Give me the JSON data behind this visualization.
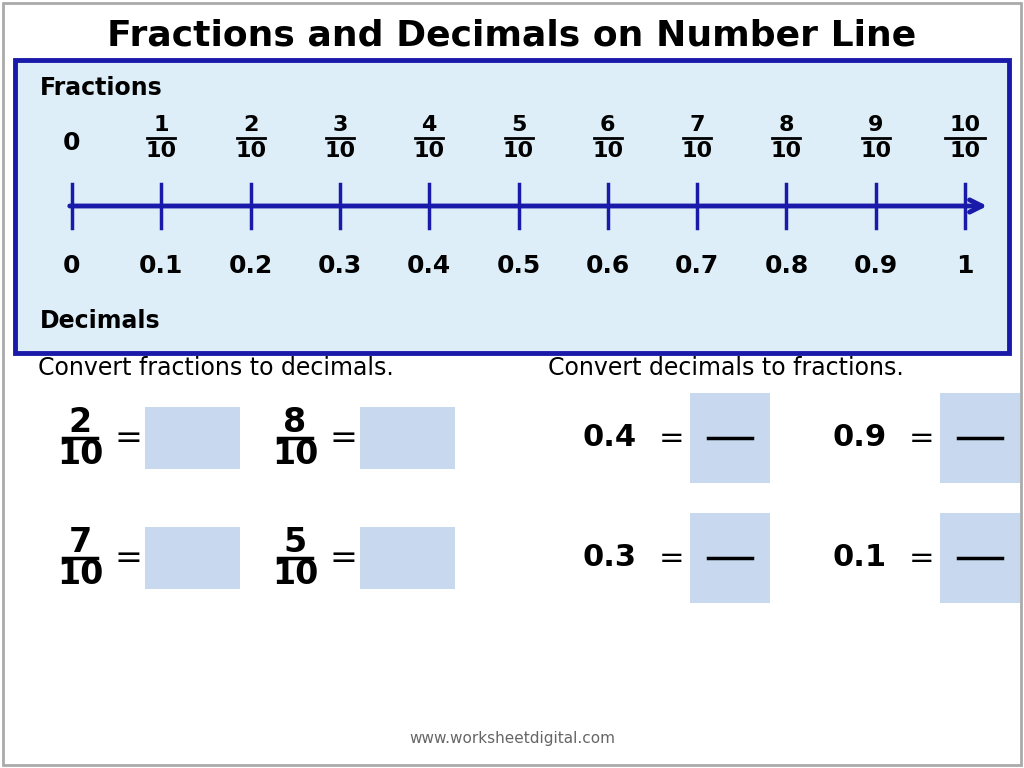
{
  "title": "Fractions and Decimals on Number Line",
  "title_fontsize": 26,
  "bg_color": "#ffffff",
  "box_bg_color": "#ddeef8",
  "box_border_color": "#1a1aaa",
  "number_line_color": "#1a1aaa",
  "text_color": "#111111",
  "dark_text": "#000000",
  "fraction_nums": [
    "0",
    "1",
    "2",
    "3",
    "4",
    "5",
    "6",
    "7",
    "8",
    "9",
    "10"
  ],
  "decimal_labels": [
    "0",
    "0.1",
    "0.2",
    "0.3",
    "0.4",
    "0.5",
    "0.6",
    "0.7",
    "0.8",
    "0.9",
    "1"
  ],
  "answer_box_color": "#c8d8ee",
  "fractions_label": "Fractions",
  "decimals_label": "Decimals",
  "convert_frac_label": "Convert fractions to decimals.",
  "convert_dec_label": "Convert decimals to fractions.",
  "website": "www.worksheetdigital.com",
  "frac_to_dec_items": [
    {
      "num": "2",
      "den": "10",
      "col": 0,
      "row": 0
    },
    {
      "num": "8",
      "den": "10",
      "col": 1,
      "row": 0
    },
    {
      "num": "7",
      "den": "10",
      "col": 0,
      "row": 1
    },
    {
      "num": "5",
      "den": "10",
      "col": 1,
      "row": 1
    }
  ],
  "dec_to_frac_items": [
    {
      "dec": "0.4",
      "col": 0,
      "row": 0
    },
    {
      "dec": "0.9",
      "col": 1,
      "row": 0
    },
    {
      "dec": "0.3",
      "col": 0,
      "row": 1
    },
    {
      "dec": "0.1",
      "col": 1,
      "row": 1
    }
  ]
}
